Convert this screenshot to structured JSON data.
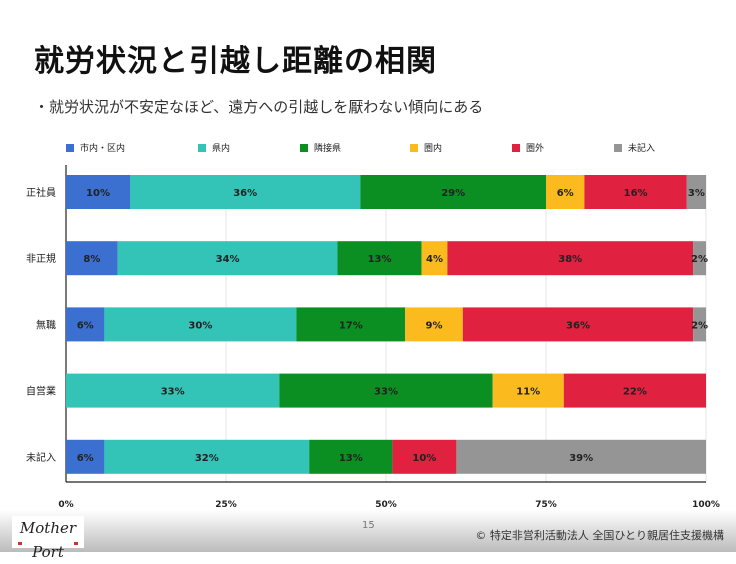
{
  "title": "就労状況と引越し距離の相関",
  "subtitle": "・就労状況が不安定なほど、遠方への引越しを厭わない傾向にある",
  "page_number": "15",
  "copyright": "© 特定非営利活動法人 全国ひとり親居住支援機構",
  "logo": "Mother Port",
  "chart_data": {
    "type": "bar",
    "orientation": "horizontal",
    "stacked": "percent",
    "categories": [
      "正社員",
      "非正規",
      "無職",
      "自営業",
      "未記入"
    ],
    "series": [
      {
        "name": "市内・区内",
        "color": "#3b6fd0",
        "values": [
          10,
          8,
          6,
          0,
          6
        ]
      },
      {
        "name": "県内",
        "color": "#33c3b7",
        "values": [
          36,
          34,
          30,
          33,
          32
        ]
      },
      {
        "name": "隣接県",
        "color": "#0b8f22",
        "values": [
          29,
          13,
          17,
          33,
          13
        ]
      },
      {
        "name": "圏内",
        "color": "#fbbb1e",
        "values": [
          6,
          4,
          9,
          11,
          0
        ]
      },
      {
        "name": "圏外",
        "color": "#e0213f",
        "values": [
          16,
          38,
          36,
          22,
          10
        ]
      },
      {
        "name": "未記入",
        "color": "#959595",
        "values": [
          3,
          2,
          2,
          0,
          39
        ]
      }
    ],
    "xticks": [
      "0%",
      "25%",
      "50%",
      "75%",
      "100%"
    ],
    "xlim": [
      0,
      100
    ],
    "legend": "top",
    "grid": true
  }
}
